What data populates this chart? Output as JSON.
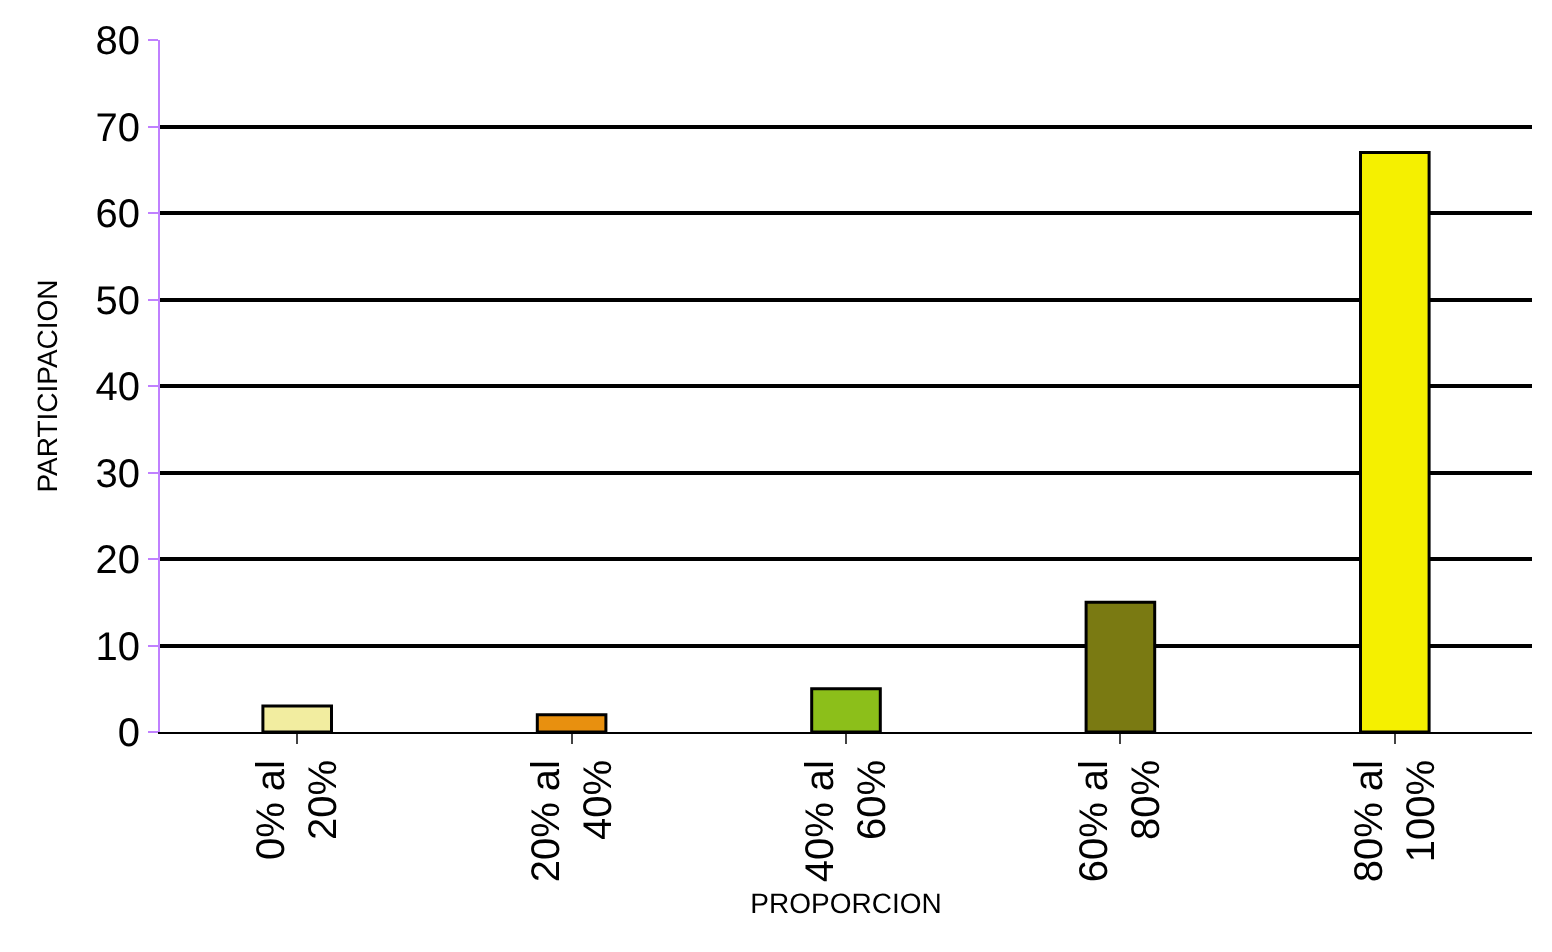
{
  "chart_data": {
    "type": "bar",
    "xlabel": "PROPORCION",
    "ylabel": "PARTICIPACION",
    "categories": [
      "0% al\n20%",
      "20% al\n40%",
      "40% al\n60%",
      "60% al\n80%",
      "80% al\n100%"
    ],
    "values": [
      3,
      2,
      5,
      15,
      67
    ],
    "colors": [
      "#f2eda0",
      "#e8900f",
      "#8cbf1a",
      "#7a7a12",
      "#f5f000"
    ],
    "ylim": [
      0,
      80
    ],
    "yticks": [
      0,
      10,
      20,
      30,
      40,
      50,
      60,
      70,
      80
    ],
    "grid": "y"
  }
}
